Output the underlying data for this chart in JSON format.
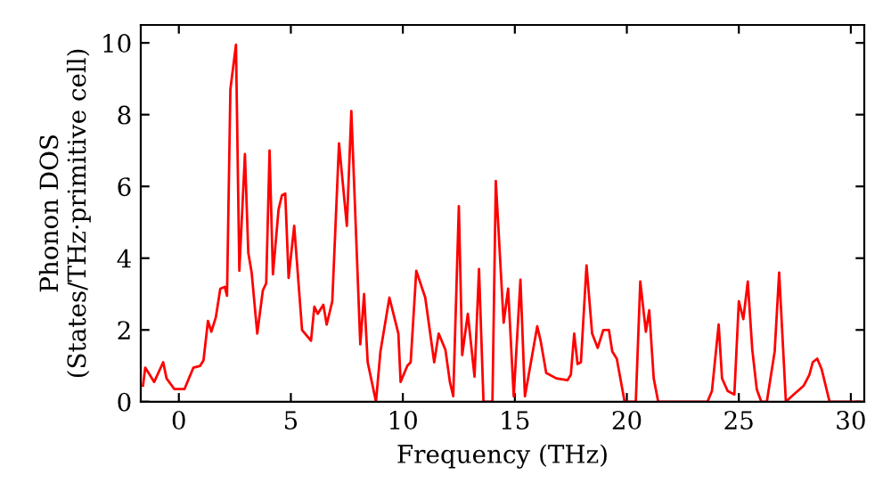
{
  "chart_data": {
    "type": "line",
    "xlabel": "Frequency (THz)",
    "ylabel": "Phonon DOS\n(States/THz·primitive cell)",
    "xlim": [
      -1.7,
      30.6
    ],
    "ylim": [
      0,
      10.5
    ],
    "xticks": [
      0,
      5,
      10,
      15,
      20,
      25,
      30
    ],
    "yticks": [
      0,
      2,
      4,
      6,
      8,
      10
    ],
    "grid": false,
    "legend": false,
    "marker": "none",
    "line_style": "solid",
    "series": [
      {
        "color": "#ff0000",
        "x": [
          -1.6,
          -1.5,
          -1.1,
          -0.7,
          -0.55,
          -0.2,
          0.25,
          0.65,
          0.95,
          1.1,
          1.3,
          1.45,
          1.65,
          1.85,
          2.05,
          2.15,
          2.3,
          2.55,
          2.7,
          2.95,
          3.1,
          3.25,
          3.5,
          3.75,
          3.9,
          4.05,
          4.2,
          4.45,
          4.6,
          4.75,
          4.9,
          5.15,
          5.5,
          5.9,
          6.05,
          6.2,
          6.45,
          6.6,
          6.85,
          7.15,
          7.5,
          7.7,
          8.1,
          8.27,
          8.43,
          8.8,
          9.0,
          9.4,
          9.8,
          9.9,
          10.2,
          10.35,
          10.6,
          11.0,
          11.4,
          11.6,
          11.9,
          12.1,
          12.25,
          12.5,
          12.65,
          12.9,
          13.2,
          13.4,
          13.6,
          14.0,
          14.15,
          14.5,
          14.7,
          14.95,
          15.25,
          15.45,
          16.0,
          16.15,
          16.4,
          16.85,
          17.35,
          17.5,
          17.65,
          17.8,
          17.95,
          18.2,
          18.45,
          18.7,
          18.95,
          19.2,
          19.35,
          19.55,
          19.9,
          20.4,
          20.6,
          20.85,
          21.0,
          21.2,
          21.4,
          23.6,
          23.8,
          24.1,
          24.25,
          24.5,
          24.8,
          25.0,
          25.2,
          25.4,
          25.6,
          25.8,
          26.0,
          26.25,
          26.6,
          26.8,
          27.1,
          27.45,
          27.9,
          28.15,
          28.3,
          28.5,
          28.7,
          29.05,
          30.4
        ],
        "values": [
          0.45,
          0.95,
          0.55,
          1.1,
          0.65,
          0.35,
          0.35,
          0.95,
          1.0,
          1.15,
          2.25,
          1.95,
          2.35,
          3.15,
          3.2,
          2.95,
          8.7,
          9.95,
          3.65,
          6.9,
          4.15,
          3.6,
          1.9,
          3.1,
          3.3,
          7.0,
          3.55,
          5.35,
          5.75,
          5.8,
          3.45,
          4.9,
          2.0,
          1.7,
          2.65,
          2.45,
          2.7,
          2.15,
          2.8,
          7.2,
          4.9,
          8.1,
          1.6,
          3.0,
          1.1,
          0,
          1.4,
          2.9,
          1.9,
          0.55,
          1.0,
          1.1,
          3.65,
          2.9,
          1.1,
          1.9,
          1.45,
          0.55,
          0.15,
          5.45,
          1.3,
          2.45,
          0.7,
          3.7,
          0,
          0,
          6.15,
          2.2,
          3.15,
          0.15,
          3.4,
          0.15,
          2.1,
          1.7,
          0.8,
          0.65,
          0.6,
          0.75,
          1.9,
          1.05,
          1.1,
          3.8,
          1.9,
          1.5,
          2.0,
          2.0,
          1.4,
          1.2,
          0,
          0,
          3.35,
          1.95,
          2.55,
          0.65,
          0,
          0,
          0.3,
          2.15,
          0.65,
          0.3,
          0.2,
          2.8,
          2.3,
          3.35,
          1.45,
          0.35,
          0,
          0,
          1.4,
          3.6,
          0,
          0.2,
          0.45,
          0.75,
          1.1,
          1.2,
          0.9,
          0,
          0
        ]
      }
    ]
  }
}
